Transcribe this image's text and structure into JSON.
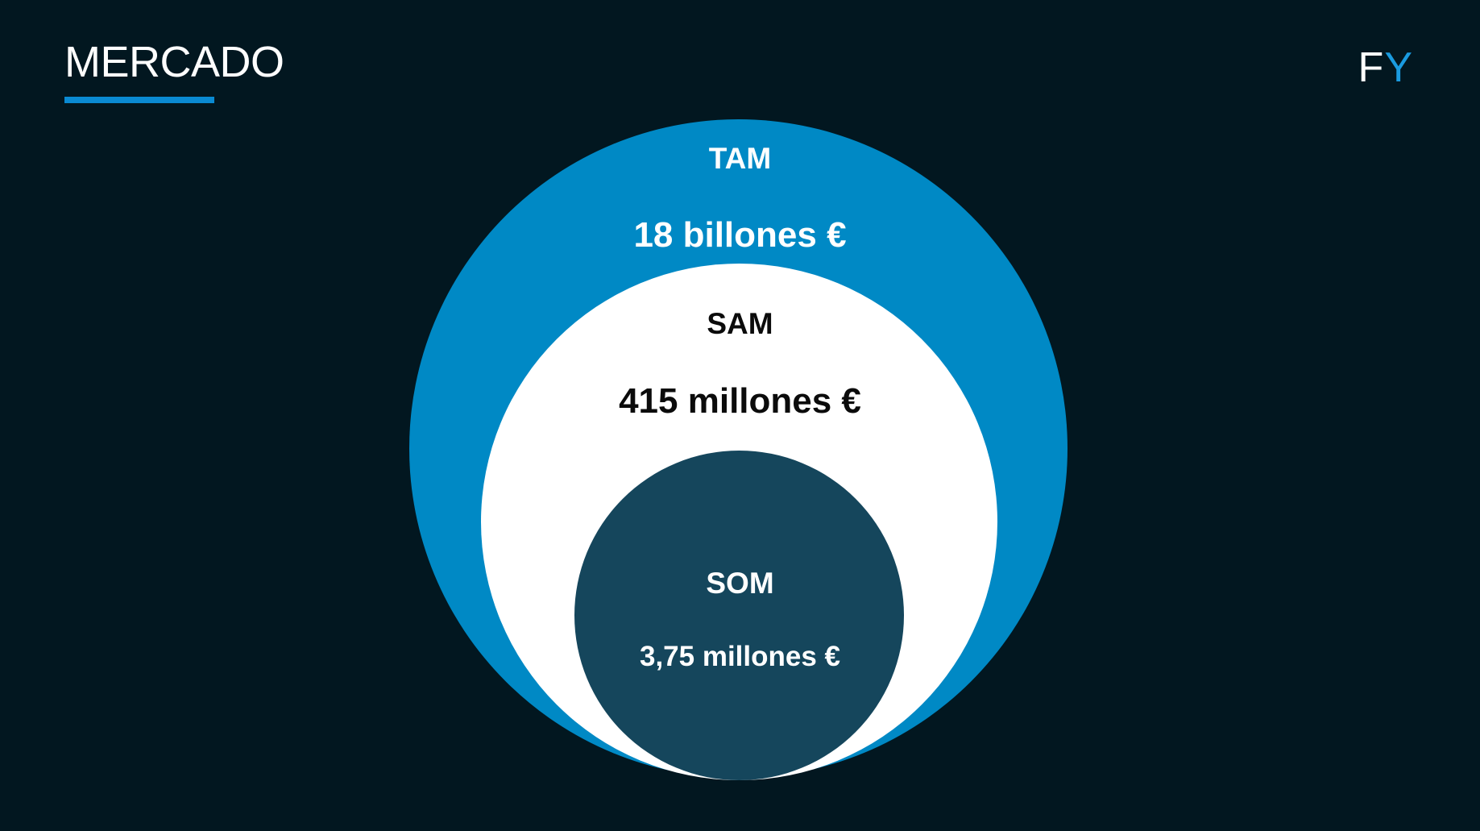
{
  "header": {
    "title": "MERCADO",
    "logo_f": "F",
    "logo_y": "Y"
  },
  "colors": {
    "background": "#021720",
    "accent": "#0a8ad2",
    "tam": "#0089c5",
    "sam": "#ffffff",
    "som": "#15465c"
  },
  "diagram": {
    "tam": {
      "label": "TAM",
      "value": "18 billones €"
    },
    "sam": {
      "label": "SAM",
      "value": "415 millones €"
    },
    "som": {
      "label": "SOM",
      "value": "3,75 millones €"
    }
  }
}
